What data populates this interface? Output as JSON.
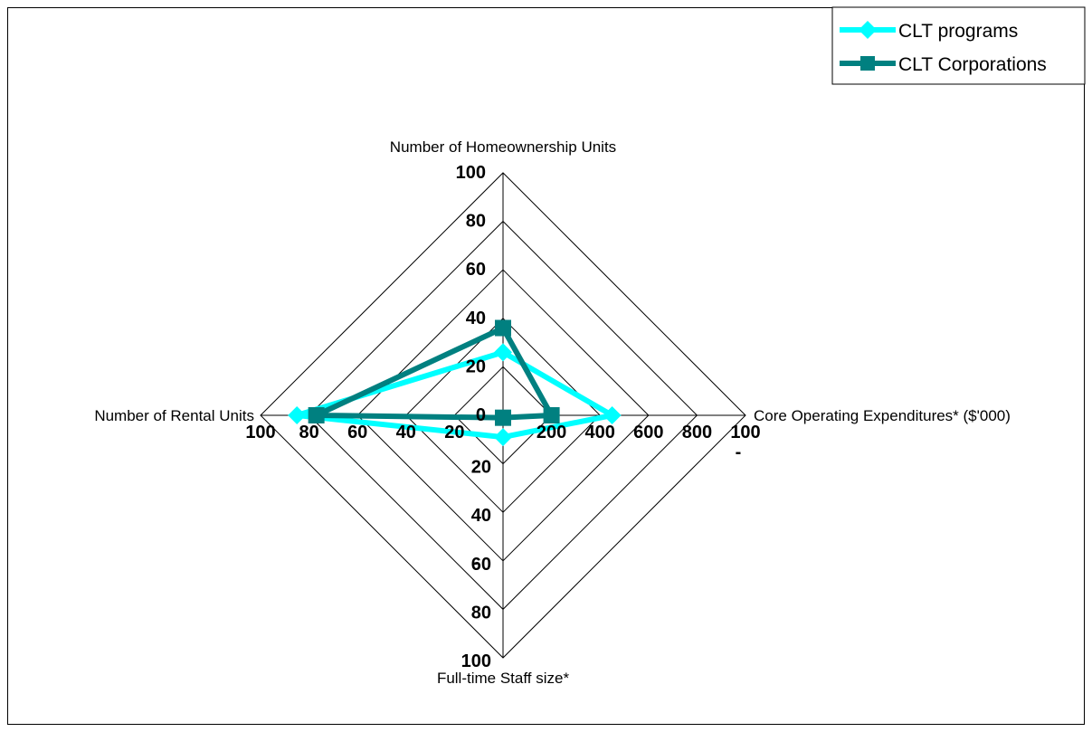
{
  "chart_data": {
    "type": "radar",
    "axes": [
      {
        "label": "Number of Homeownership Units",
        "max": 100,
        "ticks": [
          "0",
          "20",
          "40",
          "60",
          "80",
          "100"
        ]
      },
      {
        "label": "Core Operating Expenditures* ($'000)",
        "max": 1000,
        "ticks": [
          "200",
          "400",
          "600",
          "800",
          "100"
        ]
      },
      {
        "label": "Full-time Staff size*",
        "max": 100,
        "ticks": [
          "20",
          "40",
          "60",
          "80",
          "100"
        ]
      },
      {
        "label": "Number of Rental Units",
        "max": 100,
        "ticks": [
          "20",
          "40",
          "60",
          "80",
          "100"
        ]
      }
    ],
    "series": [
      {
        "name": "CLT programs",
        "color": "#00ffff",
        "marker": "diamond",
        "values": [
          26,
          450,
          9,
          85
        ]
      },
      {
        "name": "CLT Corporations",
        "color": "#008080",
        "marker": "square",
        "values": [
          36,
          200,
          1,
          77
        ]
      }
    ],
    "grid_levels": 5,
    "legend": "top-right",
    "stray_marks": [
      "-",
      "-"
    ]
  }
}
